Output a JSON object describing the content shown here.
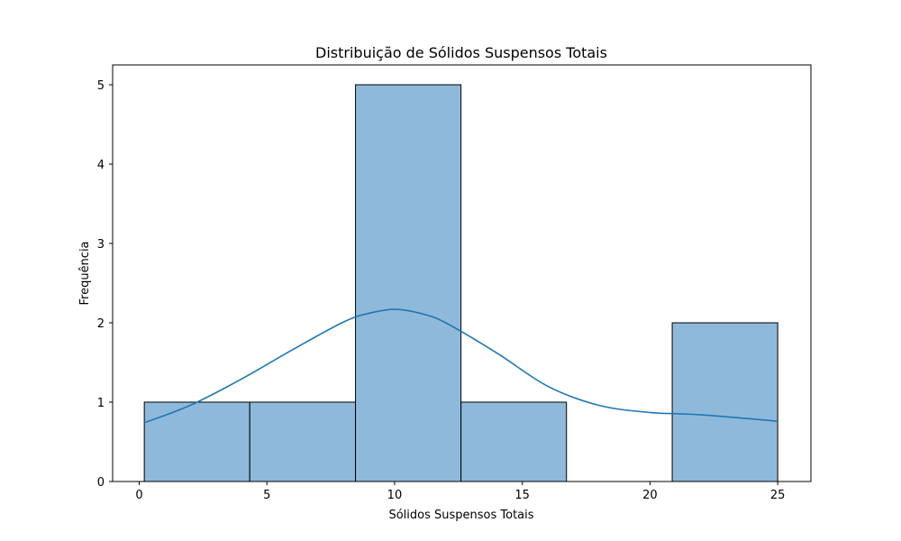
{
  "chart_data": {
    "type": "bar",
    "title": "Distribuição de Sólidos Suspensos Totais",
    "xlabel": "Sólidos Suspensos Totais",
    "ylabel": "Frequência",
    "xlim": [
      -1.04,
      26.3
    ],
    "ylim": [
      0,
      5.25
    ],
    "xticks": [
      0,
      5,
      10,
      15,
      20,
      25
    ],
    "xtick_labels": [
      "0",
      "5",
      "10",
      "15",
      "20",
      "25"
    ],
    "yticks": [
      0,
      1,
      2,
      3,
      4,
      5
    ],
    "ytick_labels": [
      "0",
      "1",
      "2",
      "3",
      "4",
      "5"
    ],
    "bins": [
      {
        "x0": 0.2,
        "x1": 4.33,
        "count": 1
      },
      {
        "x0": 4.33,
        "x1": 8.47,
        "count": 1
      },
      {
        "x0": 8.47,
        "x1": 12.6,
        "count": 5
      },
      {
        "x0": 12.6,
        "x1": 16.73,
        "count": 1
      },
      {
        "x0": 16.73,
        "x1": 20.87,
        "count": 0
      },
      {
        "x0": 20.87,
        "x1": 25.0,
        "count": 2
      }
    ],
    "kde": {
      "x": [
        0.2,
        2,
        4,
        6,
        8,
        9,
        10,
        11,
        12,
        14,
        16,
        18,
        20,
        22,
        25
      ],
      "y": [
        0.74,
        0.96,
        1.29,
        1.66,
        2.01,
        2.12,
        2.17,
        2.12,
        2.0,
        1.62,
        1.2,
        0.96,
        0.87,
        0.84,
        0.76
      ]
    },
    "colors": {
      "bar_fill": "#8fb9da",
      "bar_edge": "#000000",
      "kde_line": "#1f77b4"
    },
    "grid": false,
    "legend": "none"
  }
}
